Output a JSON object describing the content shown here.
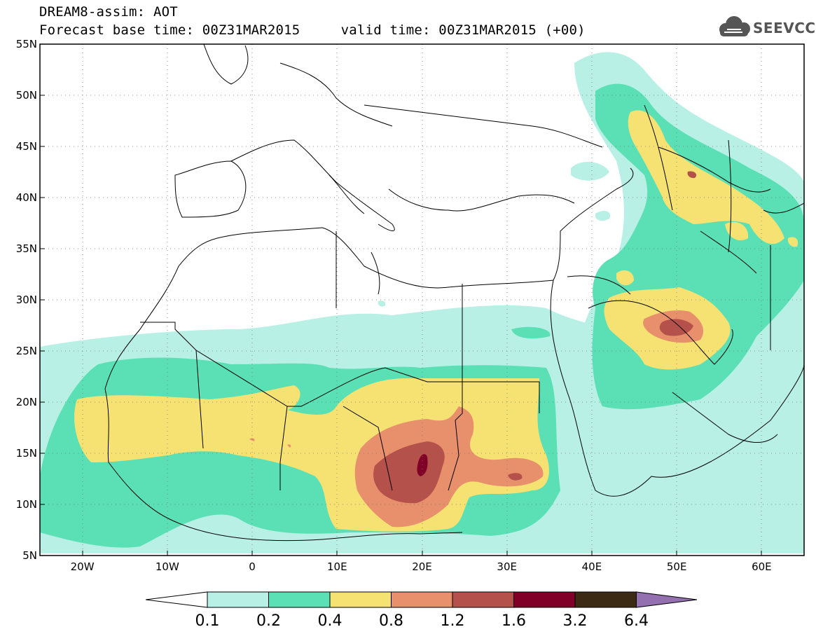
{
  "header": {
    "line1": "DREAM8-assim: AOT",
    "line2": "Forecast base time: 00Z31MAR2015     valid time: 00Z31MAR2015 (+00)"
  },
  "logo": {
    "text": "SEEVCCC",
    "icon": "cloud-icon"
  },
  "map": {
    "lon_range": [
      -25,
      65
    ],
    "lat_range": [
      5,
      55
    ],
    "lat_ticks": [
      {
        "value": 55,
        "label": "55N"
      },
      {
        "value": 50,
        "label": "50N"
      },
      {
        "value": 45,
        "label": "45N"
      },
      {
        "value": 40,
        "label": "40N"
      },
      {
        "value": 35,
        "label": "35N"
      },
      {
        "value": 30,
        "label": "30N"
      },
      {
        "value": 25,
        "label": "25N"
      },
      {
        "value": 20,
        "label": "20N"
      },
      {
        "value": 15,
        "label": "15N"
      },
      {
        "value": 10,
        "label": "10N"
      },
      {
        "value": 5,
        "label": "5N"
      }
    ],
    "lon_ticks": [
      {
        "value": -20,
        "label": "20W"
      },
      {
        "value": -10,
        "label": "10W"
      },
      {
        "value": 0,
        "label": "0"
      },
      {
        "value": 10,
        "label": "10E"
      },
      {
        "value": 20,
        "label": "20E"
      },
      {
        "value": 30,
        "label": "30E"
      },
      {
        "value": 40,
        "label": "40E"
      },
      {
        "value": 50,
        "label": "50E"
      },
      {
        "value": 60,
        "label": "60E"
      }
    ],
    "grid": "dotted"
  },
  "colorbar": {
    "levels": [
      "0.1",
      "0.2",
      "0.4",
      "0.8",
      "1.2",
      "1.6",
      "3.2",
      "6.4"
    ],
    "colors": [
      "#ffffff",
      "#b8f0e6",
      "#5ae0b4",
      "#f5e273",
      "#e8906b",
      "#b5514b",
      "#800028",
      "#3d2a15",
      "#9470b0"
    ]
  }
}
